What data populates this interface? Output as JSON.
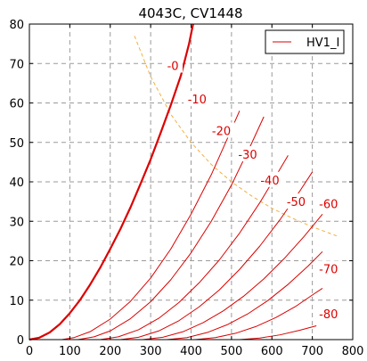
{
  "chart_data": {
    "type": "line",
    "title": "4043C, CV1448",
    "xlabel": "",
    "ylabel": "",
    "xlim": [
      0,
      800
    ],
    "ylim": [
      0,
      80
    ],
    "x_ticks": [
      0,
      100,
      200,
      300,
      400,
      500,
      600,
      700,
      800
    ],
    "y_ticks": [
      0,
      10,
      20,
      30,
      40,
      50,
      60,
      70,
      80
    ],
    "grid": true,
    "legend": {
      "placement": "top-right",
      "entries": [
        "HV1_I"
      ]
    },
    "colors": {
      "curves": "#dd0000",
      "dissipation": "#f0b040",
      "label_bg": "#ffffff"
    },
    "series": [
      {
        "label": "-0",
        "bold": true,
        "points": [
          [
            0,
            0
          ],
          [
            25,
            0.5
          ],
          [
            50,
            1.8
          ],
          [
            75,
            3.9
          ],
          [
            100,
            6.7
          ],
          [
            125,
            10.0
          ],
          [
            150,
            13.9
          ],
          [
            175,
            18.2
          ],
          [
            200,
            23.0
          ],
          [
            225,
            28.0
          ],
          [
            250,
            33.5
          ],
          [
            275,
            39.5
          ],
          [
            300,
            45.7
          ],
          [
            325,
            52.5
          ],
          [
            350,
            59.5
          ],
          [
            375,
            67.0
          ],
          [
            395,
            75.0
          ],
          [
            405,
            80.0
          ]
        ]
      },
      {
        "label": "-10",
        "points": [
          [
            80,
            0
          ],
          [
            110,
            0.5
          ],
          [
            150,
            2.0
          ],
          [
            200,
            5.2
          ],
          [
            250,
            9.7
          ],
          [
            300,
            15.6
          ],
          [
            350,
            23.0
          ],
          [
            400,
            31.8
          ],
          [
            450,
            41.8
          ],
          [
            490,
            51.0
          ],
          [
            520,
            58.0
          ]
        ]
      },
      {
        "label": "-20",
        "points": [
          [
            120,
            0
          ],
          [
            160,
            0.7
          ],
          [
            200,
            2.2
          ],
          [
            250,
            5.3
          ],
          [
            300,
            9.6
          ],
          [
            350,
            15.2
          ],
          [
            400,
            22.0
          ],
          [
            450,
            30.0
          ],
          [
            500,
            39.2
          ],
          [
            550,
            49.8
          ],
          [
            580,
            56.5
          ]
        ]
      },
      {
        "label": "-30",
        "points": [
          [
            175,
            0
          ],
          [
            220,
            0.7
          ],
          [
            270,
            2.5
          ],
          [
            320,
            5.4
          ],
          [
            370,
            9.4
          ],
          [
            420,
            14.4
          ],
          [
            470,
            20.2
          ],
          [
            520,
            27.0
          ],
          [
            570,
            34.7
          ],
          [
            610,
            41.5
          ],
          [
            640,
            46.7
          ]
        ]
      },
      {
        "label": "-40",
        "points": [
          [
            225,
            0
          ],
          [
            270,
            0.6
          ],
          [
            320,
            2.2
          ],
          [
            370,
            4.8
          ],
          [
            420,
            8.3
          ],
          [
            470,
            12.6
          ],
          [
            520,
            17.8
          ],
          [
            570,
            23.7
          ],
          [
            620,
            30.4
          ],
          [
            670,
            37.8
          ],
          [
            700,
            42.5
          ]
        ]
      },
      {
        "label": "-50",
        "points": [
          [
            280,
            0
          ],
          [
            330,
            0.6
          ],
          [
            380,
            2.0
          ],
          [
            430,
            4.3
          ],
          [
            480,
            7.3
          ],
          [
            530,
            11.0
          ],
          [
            580,
            15.4
          ],
          [
            630,
            20.5
          ],
          [
            680,
            26.2
          ],
          [
            725,
            31.8
          ]
        ]
      },
      {
        "label": "-60",
        "points": [
          [
            340,
            0
          ],
          [
            390,
            0.5
          ],
          [
            440,
            1.8
          ],
          [
            490,
            3.8
          ],
          [
            540,
            6.5
          ],
          [
            590,
            9.9
          ],
          [
            640,
            14.0
          ],
          [
            690,
            18.7
          ],
          [
            725,
            22.3
          ]
        ]
      },
      {
        "label": "-70",
        "points": [
          [
            410,
            0
          ],
          [
            460,
            0.5
          ],
          [
            510,
            1.6
          ],
          [
            560,
            3.3
          ],
          [
            610,
            5.6
          ],
          [
            660,
            8.5
          ],
          [
            700,
            11.3
          ],
          [
            725,
            13.0
          ]
        ]
      },
      {
        "label": "-80",
        "points": [
          [
            520,
            0
          ],
          [
            570,
            0.4
          ],
          [
            620,
            1.2
          ],
          [
            670,
            2.4
          ],
          [
            710,
            3.5
          ]
        ]
      }
    ],
    "curve_labels": [
      {
        "text": "-0",
        "x": 355,
        "y": 69.5
      },
      {
        "text": "-10",
        "x": 415,
        "y": 61.0
      },
      {
        "text": "-20",
        "x": 475,
        "y": 53.0
      },
      {
        "text": "-30",
        "x": 540,
        "y": 47.0
      },
      {
        "text": "-40",
        "x": 595,
        "y": 40.5
      },
      {
        "text": "-50",
        "x": 660,
        "y": 35.0
      },
      {
        "text": "-60",
        "x": 740,
        "y": 34.5
      },
      {
        "text": "-70",
        "x": 740,
        "y": 18.0
      },
      {
        "text": "-80",
        "x": 740,
        "y": 6.5
      }
    ],
    "dissipation_curve": {
      "style": "dashed",
      "points": [
        [
          260,
          77
        ],
        [
          300,
          66.7
        ],
        [
          350,
          57.1
        ],
        [
          400,
          50
        ],
        [
          450,
          44.4
        ],
        [
          500,
          40
        ],
        [
          550,
          36.4
        ],
        [
          600,
          33.3
        ],
        [
          650,
          30.8
        ],
        [
          700,
          28.6
        ],
        [
          760,
          26.3
        ]
      ]
    }
  }
}
